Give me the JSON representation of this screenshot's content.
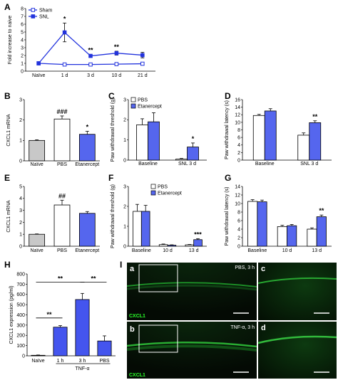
{
  "colors": {
    "sham": "#2233dd",
    "snl": "#2233dd",
    "pbs": "#ffffff",
    "etanercept": "#5566ee",
    "naive": "#c8c8c8",
    "tnf": "#4455ee",
    "tissue_bg": "#050d05",
    "tissue_green": "#1f9a2a"
  },
  "panels": {
    "A": "A",
    "B": "B",
    "C": "C",
    "D": "D",
    "E": "E",
    "F": "F",
    "G": "G",
    "H": "H",
    "I": "I"
  },
  "chart_data": [
    {
      "id": "A",
      "type": "line",
      "categories": [
        "Naïve",
        "1 d",
        "3 d",
        "10 d",
        "21 d"
      ],
      "series": [
        {
          "name": "Sham",
          "values": [
            1.0,
            0.85,
            0.85,
            0.9,
            0.95
          ],
          "err": [
            0.05,
            0.08,
            0.08,
            0.08,
            0.08
          ],
          "marker": "open"
        },
        {
          "name": "SNL",
          "values": [
            1.0,
            4.95,
            1.95,
            2.3,
            2.05
          ],
          "err": [
            0.05,
            1.2,
            0.2,
            0.25,
            0.35
          ],
          "marker": "filled"
        }
      ],
      "annotations": [
        {
          "category": "1 d",
          "text": "*"
        },
        {
          "category": "3 d",
          "text": "**"
        },
        {
          "category": "10 d",
          "text": "**"
        }
      ],
      "ylabel": "Fold increase to naive",
      "ylim": [
        0,
        8
      ],
      "yticks": [
        "0",
        "1",
        "2",
        "3",
        "4",
        "5",
        "6",
        "7",
        "8"
      ],
      "legend": "top-left"
    },
    {
      "id": "B",
      "type": "bar",
      "categories": [
        "Naïve",
        "PBS",
        "Etanercept"
      ],
      "values": [
        1.0,
        2.05,
        1.3
      ],
      "err": [
        0.03,
        0.15,
        0.15
      ],
      "fills": [
        "naive",
        "pbs",
        "etanercept"
      ],
      "annotations": [
        {
          "category": "PBS",
          "text": "###"
        },
        {
          "category": "Etanercept",
          "text": "*"
        }
      ],
      "ylabel": "CXCL1 mRNA",
      "ylim": [
        0,
        3
      ],
      "yticks": [
        "0",
        "1",
        "2",
        "3"
      ]
    },
    {
      "id": "C",
      "type": "bar",
      "categories": [
        "Baseline",
        "SNL 3 d"
      ],
      "series": [
        {
          "name": "PBS",
          "values": [
            1.75,
            0.05
          ],
          "err": [
            0.3,
            0.03
          ]
        },
        {
          "name": "Etanercept",
          "values": [
            1.9,
            0.65
          ],
          "err": [
            0.45,
            0.2
          ]
        }
      ],
      "annotations": [
        {
          "category": "SNL 3 d",
          "series": "Etanercept",
          "text": "*"
        }
      ],
      "ylabel": "Paw withdrawal threshold (g)",
      "ylim": [
        0,
        3
      ],
      "yticks": [
        "0",
        "1",
        "2",
        "3"
      ],
      "legend": "top-left"
    },
    {
      "id": "D",
      "type": "bar",
      "categories": [
        "Baseline",
        "SNL 3 d"
      ],
      "series": [
        {
          "name": "PBS",
          "values": [
            11.8,
            6.6
          ],
          "err": [
            0.3,
            0.6
          ]
        },
        {
          "name": "Etanercept",
          "values": [
            13.0,
            9.9
          ],
          "err": [
            0.6,
            0.5
          ]
        }
      ],
      "annotations": [
        {
          "category": "SNL 3 d",
          "series": "Etanercept",
          "text": "**"
        }
      ],
      "ylabel": "Paw withdrawal latency (s)",
      "ylim": [
        0,
        16
      ],
      "yticks": [
        "0",
        "2",
        "4",
        "6",
        "8",
        "10",
        "12",
        "14",
        "16"
      ]
    },
    {
      "id": "E",
      "type": "bar",
      "categories": [
        "Naïve",
        "PBS",
        "Etanercept"
      ],
      "values": [
        1.0,
        3.45,
        2.75
      ],
      "err": [
        0.03,
        0.4,
        0.15
      ],
      "fills": [
        "naive",
        "pbs",
        "etanercept"
      ],
      "annotations": [
        {
          "category": "PBS",
          "text": "##"
        }
      ],
      "ylabel": "CXCL1 mRNA",
      "ylim": [
        0,
        5
      ],
      "yticks": [
        "0",
        "1",
        "2",
        "3",
        "4",
        "5"
      ]
    },
    {
      "id": "F",
      "type": "bar",
      "categories": [
        "Baseline",
        "10 d",
        "13 d"
      ],
      "series": [
        {
          "name": "PBS",
          "values": [
            1.75,
            0.08,
            0.07
          ],
          "err": [
            0.35,
            0.03,
            0.02
          ]
        },
        {
          "name": "Etanercept",
          "values": [
            1.75,
            0.05,
            0.33
          ],
          "err": [
            0.3,
            0.02,
            0.05
          ]
        }
      ],
      "annotations": [
        {
          "category": "13 d",
          "series": "Etanercept",
          "text": "***"
        }
      ],
      "ylabel": "Paw withdrawal threshold (g)",
      "ylim": [
        0,
        3
      ],
      "yticks": [
        "0",
        "1",
        "2",
        "3"
      ],
      "legend": "top-right"
    },
    {
      "id": "G",
      "type": "bar",
      "categories": [
        "Baseline",
        "10 d",
        "13 d"
      ],
      "series": [
        {
          "name": "PBS",
          "values": [
            10.5,
            4.6,
            4.0
          ],
          "err": [
            0.4,
            0.3,
            0.3
          ]
        },
        {
          "name": "Etanercept",
          "values": [
            10.4,
            4.8,
            6.9
          ],
          "err": [
            0.4,
            0.3,
            0.4
          ]
        }
      ],
      "annotations": [
        {
          "category": "13 d",
          "series": "Etanercept",
          "text": "**"
        }
      ],
      "ylabel": "Paw withdrawal latency (s)",
      "ylim": [
        0,
        14
      ],
      "yticks": [
        "0",
        "2",
        "4",
        "6",
        "8",
        "10",
        "12",
        "14"
      ]
    },
    {
      "id": "H",
      "type": "bar",
      "categories": [
        "Naïve",
        "1 h",
        "3 h",
        "PBS"
      ],
      "values": [
        5,
        280,
        550,
        145
      ],
      "err": [
        3,
        15,
        60,
        50
      ],
      "fills": [
        "naive",
        "tnf",
        "tnf",
        "tnf"
      ],
      "group_label": "TNF-α",
      "brackets": [
        {
          "from": 0,
          "to": 1,
          "text": "**"
        },
        {
          "from": 0,
          "to": 2,
          "text": "**"
        },
        {
          "from": 2,
          "to": 3,
          "text": "**"
        }
      ],
      "ylabel": "CXCL1 expression (pg/ml)",
      "ylim": [
        0,
        800
      ],
      "yticks": [
        "0",
        "100",
        "200",
        "300",
        "400",
        "500",
        "600",
        "700",
        "800"
      ]
    }
  ],
  "micrographs": [
    {
      "letter": "a",
      "condition": "PBS, 3 h",
      "marker": "CXCL1"
    },
    {
      "letter": "b",
      "condition": "TNF-α, 3 h",
      "marker": "CXCL1"
    },
    {
      "letter": "c"
    },
    {
      "letter": "d"
    }
  ]
}
